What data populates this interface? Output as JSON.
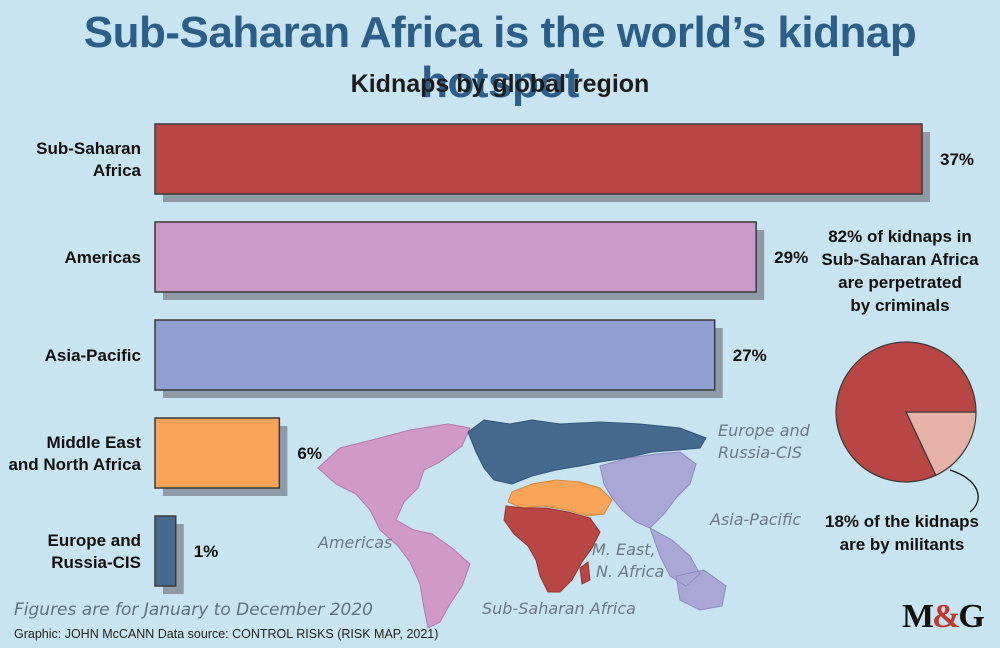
{
  "title": "Sub-Saharan Africa is the world’s kidnap hotspot",
  "chart_data": {
    "type": "bar",
    "orientation": "horizontal",
    "subtitle": "Kidnaps by global region",
    "unit": "%",
    "xlim": [
      0,
      37
    ],
    "categories": [
      {
        "lines": [
          "Sub-Saharan",
          "Africa"
        ],
        "value": 37,
        "label": "37%",
        "color": "#b84645"
      },
      {
        "lines": [
          "Americas"
        ],
        "value": 29,
        "label": "29%",
        "color": "#c99ac8"
      },
      {
        "lines": [
          "Asia-Pacific"
        ],
        "value": 27,
        "label": "27%",
        "color": "#909ed1"
      },
      {
        "lines": [
          "Middle East",
          "and North Africa"
        ],
        "value": 6,
        "label": "6%",
        "color": "#f8a458"
      },
      {
        "lines": [
          "Europe and",
          "Russia-CIS"
        ],
        "value": 1,
        "label": "1%",
        "color": "#45698f"
      }
    ]
  },
  "pie": {
    "top_text": [
      "82% of kidnaps in",
      "Sub-Saharan Africa",
      "are perpetrated",
      "by criminals"
    ],
    "bottom_text": [
      "18% of the kidnaps",
      "are by militants"
    ],
    "slices": [
      {
        "value": 82,
        "color": "#b84645"
      },
      {
        "value": 18,
        "color": "#e6b2a8"
      }
    ]
  },
  "map_labels": {
    "europe": [
      "Europe and",
      "Russia-CIS"
    ],
    "asia": "Asia-Pacific",
    "americas": "Americas",
    "mena": [
      "M. East,",
      "N. Africa"
    ],
    "ssa": "Sub-Saharan Africa"
  },
  "note": "Figures are for January to December 2020",
  "credit": "Graphic: JOHN McCANN  Data source: CONTROL RISKS (RISK MAP, 2021)",
  "logo": {
    "m": "M",
    "amp": "&",
    "g": "G"
  }
}
